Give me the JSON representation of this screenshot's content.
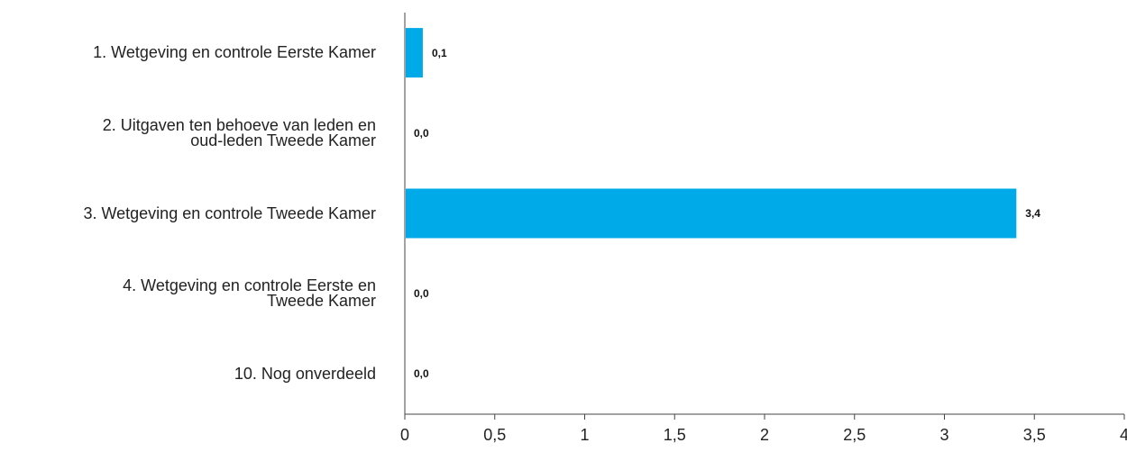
{
  "chart_data": {
    "type": "bar",
    "orientation": "horizontal",
    "categories": [
      [
        "1. Wetgeving en controle Eerste Kamer"
      ],
      [
        "2. Uitgaven ten behoeve van leden en",
        "oud-leden Tweede Kamer"
      ],
      [
        "3. Wetgeving en controle Tweede Kamer"
      ],
      [
        "4. Wetgeving en controle Eerste en",
        "Tweede Kamer"
      ],
      [
        "10. Nog onverdeeld"
      ]
    ],
    "values": [
      0.1,
      0.0,
      3.4,
      0.0,
      0.0
    ],
    "value_labels": [
      "0,1",
      "0,0",
      "3,4",
      "0,0",
      "0,0"
    ],
    "xlim": [
      0,
      4
    ],
    "x_ticks": [
      0,
      0.5,
      1,
      1.5,
      2,
      2.5,
      3,
      3.5,
      4
    ],
    "x_tick_labels": [
      "0",
      "0,5",
      "1",
      "1,5",
      "2",
      "2,5",
      "3",
      "3,5",
      "4"
    ],
    "title": "",
    "xlabel": "",
    "ylabel": "",
    "grid": false,
    "bar_color": "#00a9e8"
  }
}
